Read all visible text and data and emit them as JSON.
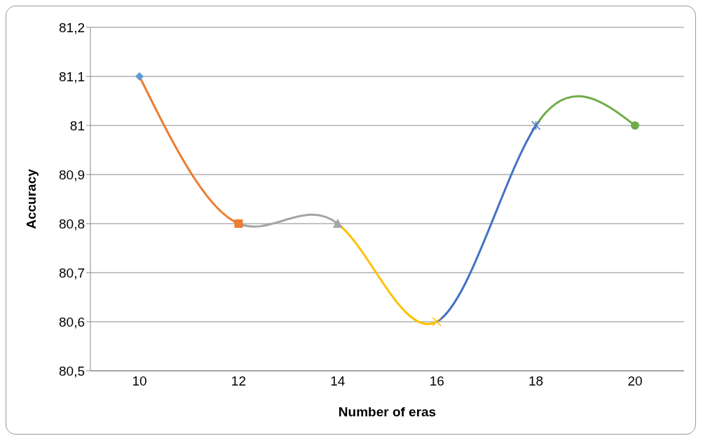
{
  "chart_data": {
    "type": "line",
    "xlabel": "Number of eras",
    "ylabel": "Accuracy",
    "categories": [
      "10",
      "12",
      "14",
      "16",
      "18",
      "20"
    ],
    "values": [
      81.1,
      80.8,
      80.8,
      80.6,
      81.0,
      81.0
    ],
    "colors": [
      "#5b9bd5",
      "#ed7d31",
      "#a5a5a5",
      "#ffc000",
      "#4472c4",
      "#70ad47"
    ],
    "marker": [
      "diamond",
      "square",
      "triangle",
      "cross",
      "star",
      "circle"
    ],
    "ylim": [
      80.5,
      81.2
    ],
    "yticks": [
      {
        "value": 80.5,
        "label": "80,5"
      },
      {
        "value": 80.6,
        "label": "80,6"
      },
      {
        "value": 80.7,
        "label": "80,7"
      },
      {
        "value": 80.8,
        "label": "80,8"
      },
      {
        "value": 80.9,
        "label": "80,9"
      },
      {
        "value": 81,
        "label": "81"
      },
      {
        "value": 81.1,
        "label": "81,1"
      },
      {
        "value": 81.2,
        "label": "81,2"
      }
    ],
    "grid": "y"
  }
}
